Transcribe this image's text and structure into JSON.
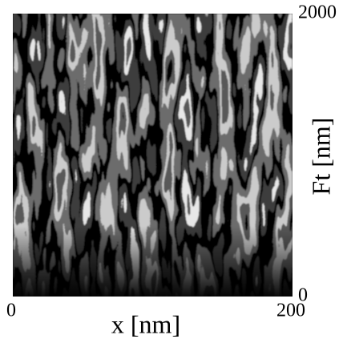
{
  "chart_data": {
    "type": "image",
    "xlabel": "x [nm]",
    "ylabel": "Ft [nm]",
    "xlim": [
      0,
      200
    ],
    "ylim": [
      0,
      2000
    ],
    "xticks": [
      0,
      200
    ],
    "yticks": [
      0,
      2000
    ]
  }
}
